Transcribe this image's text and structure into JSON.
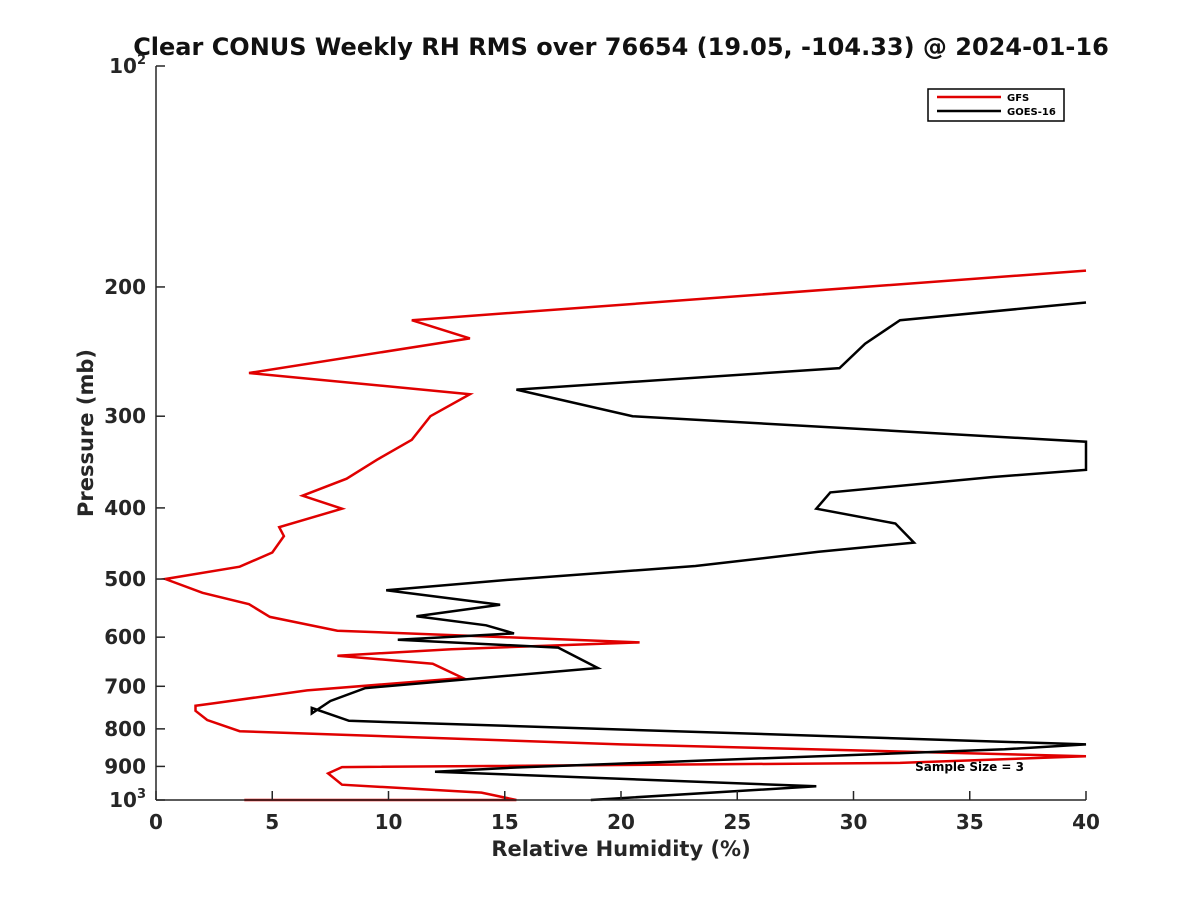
{
  "chart_data": {
    "type": "line",
    "title": "Clear CONUS Weekly RH RMS over 76654 (19.05, -104.33) @ 2024-01-16",
    "xlabel": "Relative Humidity (%)",
    "ylabel": "Pressure (mb)",
    "xlim": [
      0,
      40
    ],
    "ylim": [
      100,
      1000
    ],
    "yscale": "log",
    "y_reversed": true,
    "x_ticks": [
      "0",
      "5",
      "10",
      "15",
      "20",
      "25",
      "30",
      "35",
      "40"
    ],
    "y_ticks": [
      {
        "value": 100,
        "label": "10",
        "exp": "2"
      },
      {
        "value": 200,
        "label": "200",
        "exp": ""
      },
      {
        "value": 300,
        "label": "300",
        "exp": ""
      },
      {
        "value": 400,
        "label": "400",
        "exp": ""
      },
      {
        "value": 500,
        "label": "500",
        "exp": ""
      },
      {
        "value": 600,
        "label": "600",
        "exp": ""
      },
      {
        "value": 700,
        "label": "700",
        "exp": ""
      },
      {
        "value": 800,
        "label": "800",
        "exp": ""
      },
      {
        "value": 900,
        "label": "900",
        "exp": ""
      },
      {
        "value": 1000,
        "label": "10",
        "exp": "3"
      }
    ],
    "legend_position": "top-right",
    "annotation": "Sample Size = 3",
    "series": [
      {
        "name": "GFS",
        "color": "#e00000",
        "x": [
          40,
          11,
          13.5,
          4,
          13.5,
          11.8,
          11,
          9.5,
          8.2,
          6.3,
          8,
          5.3,
          5.5,
          5,
          3.6,
          0.4,
          2,
          4,
          4.9,
          7.8,
          20.8,
          12.7,
          7.8,
          11.9,
          13.2,
          6.5,
          2.5,
          1.7,
          1.7,
          2.2,
          3.6,
          20,
          40,
          32,
          8,
          7.4,
          8,
          14,
          15.5,
          3.8
        ],
        "y": [
          190,
          222,
          235,
          262,
          280,
          300,
          323,
          344,
          365,
          385,
          401,
          425,
          437,
          460,
          481,
          500,
          522,
          541,
          563,
          588,
          610,
          623,
          636,
          652,
          682,
          709,
          738,
          744,
          756,
          778,
          806,
          840,
          872,
          890,
          902,
          920,
          953,
          977,
          1000,
          1000
        ]
      },
      {
        "name": "GOES-16",
        "color": "#000000",
        "x": [
          40,
          32,
          30.5,
          29.4,
          15.5,
          20.5,
          40,
          40,
          36,
          29,
          28.4,
          31.8,
          32.6,
          28.5,
          23.2,
          15.2,
          9.9,
          14.8,
          11.2,
          14.2,
          15.4,
          10.4,
          17.3,
          19,
          9,
          7.5,
          6.7,
          6.7,
          8.3,
          40,
          36.5,
          15.5,
          12,
          28.4,
          18.7
        ],
        "y": [
          210,
          222,
          239,
          258,
          276,
          300,
          325,
          355,
          363,
          381,
          401,
          420,
          446,
          459,
          480,
          501,
          518,
          542,
          562,
          578,
          593,
          605,
          620,
          661,
          704,
          733,
          762,
          749,
          780,
          840,
          853,
          903,
          915,
          958,
          1000
        ]
      }
    ]
  }
}
